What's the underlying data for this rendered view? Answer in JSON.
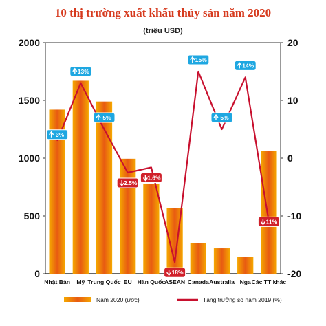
{
  "chart_data": {
    "type": "bar",
    "title": "10 thị trường xuất khẩu thủy sản năm 2020",
    "subtitle": "(triệu USD)",
    "categories": [
      "Nhật Bản",
      "Mỹ",
      "Trung Quốc",
      "EU",
      "Hàn Quốc",
      "ASEAN",
      "Canada",
      "Australia",
      "Nga",
      "Các TT khác"
    ],
    "y_left": {
      "ylim": [
        0,
        2000
      ],
      "ticks": [
        "0",
        "500",
        "1000",
        "1500",
        "2000"
      ]
    },
    "y_right": {
      "ylim": [
        -20,
        20
      ],
      "ticks": [
        "-20",
        "-10",
        "0",
        "10",
        "20"
      ]
    },
    "series": [
      {
        "name": "Năm 2020 (ước)",
        "type": "bar",
        "axis": "left",
        "values": [
          1420,
          1670,
          1490,
          995,
          775,
          570,
          265,
          220,
          145,
          1065
        ]
      },
      {
        "name": "Tăng trưởng so năm 2019 (%)",
        "type": "line",
        "axis": "right",
        "values": [
          3,
          13,
          5,
          -2.5,
          -1.6,
          -18,
          15,
          5,
          14,
          -11
        ],
        "labels": [
          "3%",
          "13%",
          "5%",
          "2.5%",
          "1.6%",
          "18%",
          "15%",
          "5%",
          "14%",
          "11%"
        ],
        "directions": [
          "up",
          "up",
          "up",
          "down",
          "down",
          "down",
          "up",
          "up",
          "up",
          "down"
        ]
      }
    ],
    "colors": {
      "bar_edge": "#f5a800",
      "bar_center": "#e85a12",
      "line": "#c8102e",
      "badge_up": "#1ea7e1",
      "badge_down": "#d0202a",
      "grid": "#333333"
    },
    "legend": {
      "position": "bottom"
    },
    "grid": false
  }
}
